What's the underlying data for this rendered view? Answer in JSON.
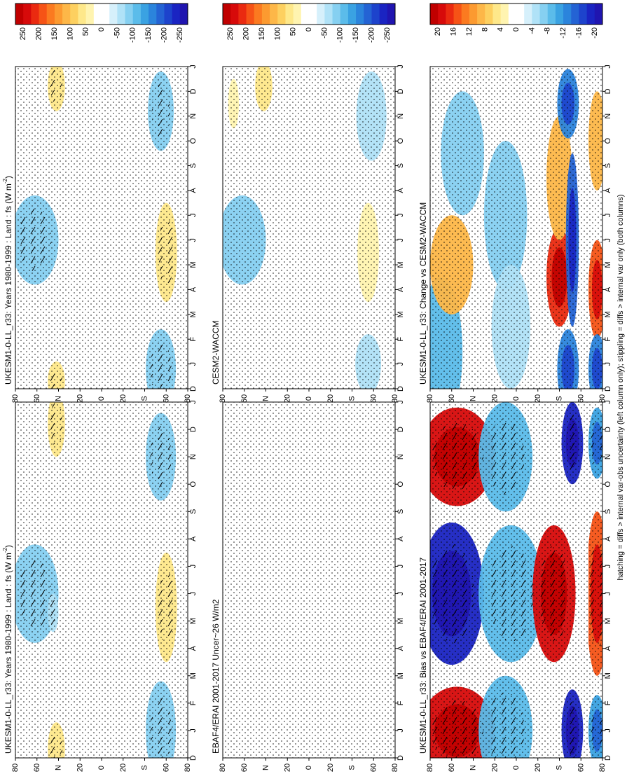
{
  "figure": {
    "footnote": "hatching = diffs > internal var-obs uncertainty (left column only); stippling = diffs > internal var only (both columns)"
  },
  "colors": {
    "warm": [
      "#ffffff",
      "#fff4b0",
      "#fee88a",
      "#fdd060",
      "#fdb748",
      "#fc9a30",
      "#fb7a20",
      "#f65316",
      "#ea2a10",
      "#d70a0a",
      "#c00000"
    ],
    "cold": [
      "#ffffff",
      "#d6f0fb",
      "#b0e2f7",
      "#86d0f1",
      "#5bbcea",
      "#3aa2e2",
      "#2b84dc",
      "#2463d4",
      "#1d43cc",
      "#1a24c2",
      "#2015b0"
    ],
    "stipple": "#000000",
    "gap_band": "#ffffff"
  },
  "colorbar_large": {
    "labels": [
      "250",
      "200",
      "150",
      "100",
      "50",
      "0",
      "-50",
      "-100",
      "-150",
      "-200",
      "-250"
    ]
  },
  "colorbar_small": {
    "labels": [
      "20",
      "16",
      "12",
      "8",
      "4",
      "0",
      "-4",
      "-8",
      "-12",
      "-16",
      "-20"
    ]
  },
  "month_ticks": [
    "D",
    "J",
    "F",
    "M",
    "A",
    "M",
    "J",
    "J",
    "A",
    "S",
    "O",
    "N",
    "D",
    "J"
  ],
  "lat_ticks": [
    "80",
    "60",
    "40",
    "20",
    "0",
    "20",
    "40",
    "60",
    "80"
  ],
  "lat_suffix_n": "N",
  "lat_suffix_s": "S",
  "chart_data": [
    {
      "type": "heatmap",
      "title": "UKESM1-0-LL_r33: Years 1980-1999 : Land : fs (W m",
      "title_sup": "-2",
      "title_tail": ")",
      "x": "latitude",
      "y": "month",
      "scale": "large",
      "features": [
        {
          "lat": 62,
          "t": 6.0,
          "dlat": 22,
          "dt": 1.8,
          "value": -70
        },
        {
          "lat": 45,
          "t": 5.3,
          "dlat": 5,
          "dt": 0.7,
          "value": -50
        },
        {
          "lat": -55,
          "t": 1.0,
          "dlat": 14,
          "dt": 1.8,
          "value": -70
        },
        {
          "lat": -55,
          "t": 11.0,
          "dlat": 14,
          "dt": 1.6,
          "value": -70
        },
        {
          "lat": -60,
          "t": 5.5,
          "dlat": 10,
          "dt": 2.0,
          "value": 60
        },
        {
          "lat": 42,
          "t": 0.3,
          "dlat": 8,
          "dt": 1.0,
          "value": 60
        },
        {
          "lat": 42,
          "t": 12.2,
          "dlat": 8,
          "dt": 1.2,
          "value": 60
        }
      ]
    },
    {
      "type": "heatmap",
      "title": "UKESM1-0-LL_r33: Years 1980-1999 : Land : fs (W m",
      "title_sup": "-2",
      "title_tail": ")",
      "x": "latitude",
      "y": "month",
      "scale": "large",
      "features": [
        {
          "lat": 62,
          "t": 6.0,
          "dlat": 22,
          "dt": 1.8,
          "value": -70
        },
        {
          "lat": -55,
          "t": 0.8,
          "dlat": 14,
          "dt": 1.6,
          "value": -70
        },
        {
          "lat": -55,
          "t": 11.2,
          "dlat": 12,
          "dt": 1.6,
          "value": -70
        },
        {
          "lat": -60,
          "t": 5.5,
          "dlat": 10,
          "dt": 2.0,
          "value": 50
        },
        {
          "lat": 42,
          "t": 0.3,
          "dlat": 8,
          "dt": 0.8,
          "value": 50
        },
        {
          "lat": 42,
          "t": 12.2,
          "dlat": 8,
          "dt": 1.0,
          "value": 50
        }
      ]
    },
    {
      "type": "heatmap",
      "title": "EBAF4/ERAI 2001-2017 Uncer~26 W/m2",
      "x": "latitude",
      "y": "month",
      "scale": "large",
      "features": []
    },
    {
      "type": "heatmap",
      "title": "CESM2-WACCM",
      "x": "latitude",
      "y": "month",
      "scale": "large",
      "features": [
        {
          "lat": 62,
          "t": 6.0,
          "dlat": 22,
          "dt": 1.8,
          "value": -70
        },
        {
          "lat": -55,
          "t": 1.0,
          "dlat": 12,
          "dt": 1.2,
          "value": -60
        },
        {
          "lat": -58,
          "t": 11.0,
          "dlat": 14,
          "dt": 1.8,
          "value": -60
        },
        {
          "lat": -55,
          "t": 5.5,
          "dlat": 10,
          "dt": 2.0,
          "value": 40
        },
        {
          "lat": 42,
          "t": 12.2,
          "dlat": 8,
          "dt": 1.0,
          "value": 50
        },
        {
          "lat": 70,
          "t": 11.5,
          "dlat": 5,
          "dt": 1.0,
          "value": 40
        }
      ]
    },
    {
      "type": "heatmap",
      "title": "UKESM1-0-LL_r33: Bias vs EBAF4/ERAI 2001-2017",
      "x": "latitude",
      "y": "month",
      "scale": "small",
      "features": [
        {
          "lat": 55,
          "t": 1.0,
          "dlat": 35,
          "dt": 1.6,
          "value": 20
        },
        {
          "lat": 55,
          "t": 11.0,
          "dlat": 35,
          "dt": 1.8,
          "value": 20
        },
        {
          "lat": 60,
          "t": 6.0,
          "dlat": 30,
          "dt": 2.6,
          "value": -20
        },
        {
          "lat": 5,
          "t": 6.0,
          "dlat": 30,
          "dt": 2.5,
          "value": -8
        },
        {
          "lat": 10,
          "t": 1.0,
          "dlat": 25,
          "dt": 2.0,
          "value": -8
        },
        {
          "lat": 10,
          "t": 11.0,
          "dlat": 25,
          "dt": 2.0,
          "value": -8
        },
        {
          "lat": -35,
          "t": 6.0,
          "dlat": 20,
          "dt": 2.5,
          "value": 20
        },
        {
          "lat": -52,
          "t": 1.0,
          "dlat": 10,
          "dt": 1.5,
          "value": -20
        },
        {
          "lat": -52,
          "t": 11.5,
          "dlat": 10,
          "dt": 1.5,
          "value": -20
        },
        {
          "lat": -75,
          "t": 6.0,
          "dlat": 10,
          "dt": 3.0,
          "value": 16
        },
        {
          "lat": -75,
          "t": 1.0,
          "dlat": 8,
          "dt": 1.3,
          "value": -12
        },
        {
          "lat": -75,
          "t": 11.5,
          "dlat": 8,
          "dt": 1.3,
          "value": -12
        }
      ]
    },
    {
      "type": "heatmap",
      "title": "UKESM1-0-LL_r33: Change vs CESM2-WACCM",
      "x": "latitude",
      "y": "month",
      "scale": "small",
      "features": [
        {
          "lat": 70,
          "t": 1.5,
          "dlat": 20,
          "dt": 3.0,
          "value": -8
        },
        {
          "lat": 60,
          "t": 5.0,
          "dlat": 20,
          "dt": 2.0,
          "value": 8
        },
        {
          "lat": 50,
          "t": 9.5,
          "dlat": 20,
          "dt": 2.5,
          "value": -6
        },
        {
          "lat": 10,
          "t": 7.0,
          "dlat": 20,
          "dt": 3.0,
          "value": -6
        },
        {
          "lat": 5,
          "t": 2.5,
          "dlat": 18,
          "dt": 2.5,
          "value": -5
        },
        {
          "lat": -40,
          "t": 4.5,
          "dlat": 12,
          "dt": 2.0,
          "value": 18
        },
        {
          "lat": -40,
          "t": 8.5,
          "dlat": 12,
          "dt": 2.5,
          "value": 8
        },
        {
          "lat": -48,
          "t": 0.8,
          "dlat": 10,
          "dt": 1.6,
          "value": -14
        },
        {
          "lat": -48,
          "t": 11.5,
          "dlat": 10,
          "dt": 1.4,
          "value": -14
        },
        {
          "lat": -52,
          "t": 6.0,
          "dlat": 6,
          "dt": 3.5,
          "value": -16
        },
        {
          "lat": -75,
          "t": 4.0,
          "dlat": 8,
          "dt": 2.0,
          "value": 16
        },
        {
          "lat": -75,
          "t": 10.0,
          "dlat": 8,
          "dt": 2.0,
          "value": 8
        },
        {
          "lat": -75,
          "t": 0.8,
          "dlat": 8,
          "dt": 1.4,
          "value": -14
        }
      ]
    }
  ]
}
